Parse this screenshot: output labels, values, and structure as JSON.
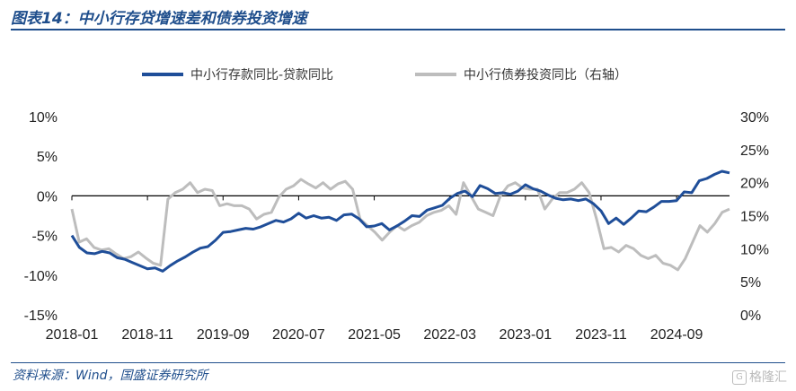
{
  "title": "图表14：中小行存贷增速差和债券投资增速",
  "source": "资料来源：Wind，国盛证券研究所",
  "watermark": "格隆汇",
  "watermark_icon": "g-logo-icon",
  "chart_data": {
    "type": "line",
    "x_ticks": [
      "2018-01",
      "2018-11",
      "2019-09",
      "2020-07",
      "2021-05",
      "2022-03",
      "2023-01",
      "2023-11",
      "2024-09"
    ],
    "y_left": {
      "range": [
        -15,
        10
      ],
      "ticks": [
        "-15%",
        "-10%",
        "-5%",
        "0%",
        "5%",
        "10%"
      ]
    },
    "y_right": {
      "range": [
        0,
        30
      ],
      "ticks": [
        "0%",
        "5%",
        "10%",
        "15%",
        "20%",
        "25%",
        "30%"
      ]
    },
    "legend_position": "top",
    "series": [
      {
        "name": "中小行存款同比-贷款同比",
        "axis": "left",
        "color": "#1f4e99",
        "values": [
          -5.0,
          -6.5,
          -7.2,
          -7.3,
          -7.0,
          -7.2,
          -7.8,
          -8.0,
          -8.4,
          -8.8,
          -9.2,
          -9.1,
          -9.5,
          -8.8,
          -8.2,
          -7.7,
          -7.1,
          -6.6,
          -6.4,
          -5.6,
          -4.6,
          -4.5,
          -4.3,
          -4.1,
          -4.2,
          -3.9,
          -3.5,
          -3.1,
          -3.3,
          -2.9,
          -2.2,
          -2.8,
          -2.5,
          -2.8,
          -2.7,
          -3.1,
          -2.4,
          -2.3,
          -2.9,
          -3.9,
          -3.8,
          -3.5,
          -4.3,
          -3.8,
          -3.2,
          -2.5,
          -2.6,
          -1.8,
          -1.5,
          -1.2,
          -0.3,
          0.3,
          0.6,
          -0.1,
          1.3,
          0.9,
          0.3,
          0.4,
          0.2,
          0.6,
          1.4,
          0.9,
          0.6,
          0.1,
          -0.3,
          -0.5,
          -0.4,
          -0.6,
          -0.4,
          -1.0,
          -1.9,
          -3.5,
          -2.8,
          -3.6,
          -2.8,
          -1.9,
          -2.0,
          -1.4,
          -0.7,
          -0.7,
          -0.6,
          0.5,
          0.4,
          1.9,
          2.2,
          2.7,
          3.1,
          2.9
        ]
      },
      {
        "name": "中小行债券投资同比（右轴）",
        "axis": "right",
        "color": "#bdbdbd",
        "values": [
          16.0,
          11.0,
          11.5,
          10.2,
          9.8,
          10.0,
          9.2,
          8.5,
          8.8,
          9.5,
          8.6,
          7.8,
          7.5,
          17.5,
          18.5,
          19.0,
          20.0,
          18.5,
          19.0,
          18.8,
          16.5,
          16.8,
          16.5,
          16.5,
          16.0,
          14.5,
          15.2,
          15.5,
          17.8,
          19.0,
          19.5,
          20.5,
          19.8,
          19.2,
          20.0,
          19.0,
          19.8,
          20.2,
          19.0,
          14.5,
          13.5,
          12.5,
          11.3,
          12.5,
          13.5,
          12.8,
          13.5,
          14.0,
          15.0,
          15.5,
          15.8,
          16.5,
          15.2,
          20.0,
          18.0,
          16.0,
          15.5,
          15.0,
          18.0,
          19.5,
          20.0,
          19.2,
          19.0,
          19.0,
          16.0,
          17.5,
          18.5,
          18.5,
          19.0,
          20.0,
          18.5,
          14.5,
          10.0,
          10.2,
          9.5,
          10.5,
          10.0,
          9.0,
          8.5,
          9.0,
          7.8,
          7.5,
          6.8,
          8.5,
          11.0,
          13.5,
          12.5,
          13.8,
          15.5,
          16.0
        ]
      }
    ]
  }
}
